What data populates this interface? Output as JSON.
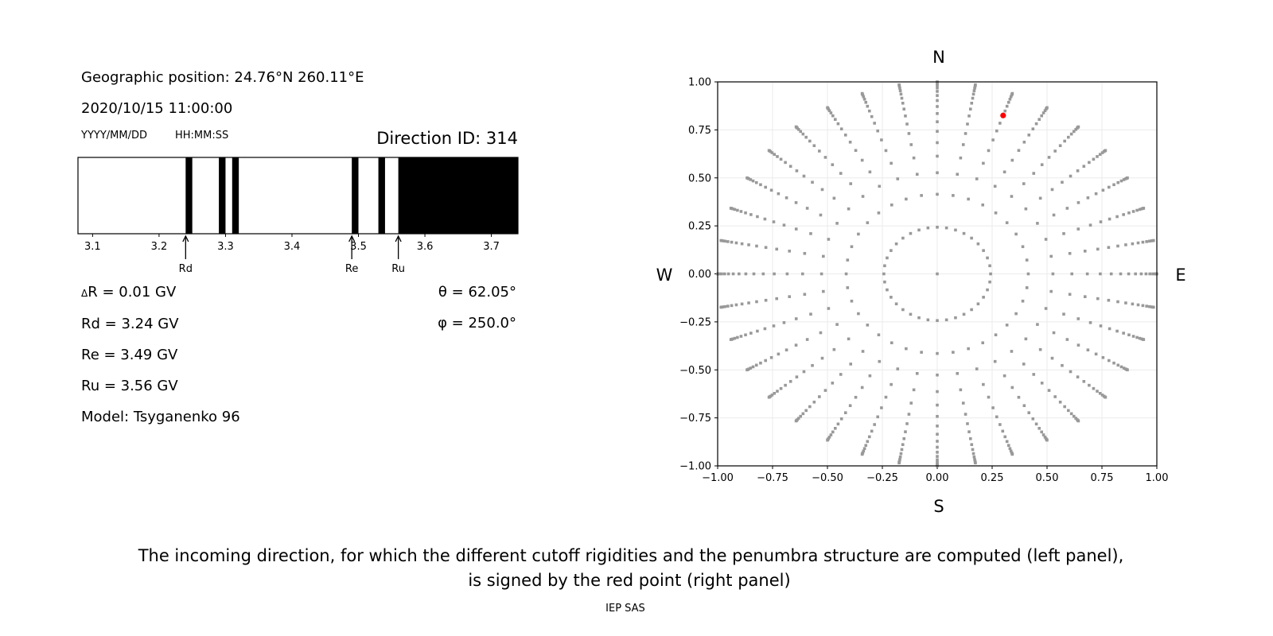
{
  "left_panel": {
    "geo_position": "Geographic position: 24.76°N 260.11°E",
    "datetime": "2020/10/15 11:00:00",
    "date_format": "YYYY/MM/DD",
    "time_format": "HH:MM:SS",
    "direction_id": "Direction ID: 314",
    "delta_r": "R = 0.01 GV",
    "delta_symbol": "Δ",
    "rd": "Rd = 3.24 GV",
    "re": "Re = 3.49 GV",
    "ru": "Ru = 3.56 GV",
    "model": "Model: Tsyganenko 96",
    "theta": "θ = 62.05°",
    "phi": "φ = 250.0°"
  },
  "caption": {
    "line1": "The incoming direction, for which the different cutoff rigidities and the penumbra structure are computed (left panel),",
    "line2": "is signed by the red point (right panel)",
    "credit": "IEP SAS"
  },
  "chart_data": [
    {
      "type": "bar",
      "xlim": [
        3.078,
        3.74
      ],
      "xticks": [
        "3.1",
        "3.2",
        "3.3",
        "3.4",
        "3.5",
        "3.6",
        "3.7"
      ],
      "forbidden_bands": [
        [
          3.24,
          3.25
        ],
        [
          3.29,
          3.3
        ],
        [
          3.31,
          3.32
        ],
        [
          3.49,
          3.5
        ],
        [
          3.53,
          3.54
        ],
        [
          3.56,
          3.74
        ]
      ],
      "band_color": "#000000",
      "markers": [
        {
          "label": "Rd",
          "value": 3.24
        },
        {
          "label": "Re",
          "value": 3.49
        },
        {
          "label": "Ru",
          "value": 3.56
        }
      ]
    },
    {
      "type": "scatter",
      "xlim": [
        -1,
        1
      ],
      "ylim": [
        -1,
        1
      ],
      "xticks": [
        "−1.00",
        "−0.75",
        "−0.50",
        "−0.25",
        "0.00",
        "0.25",
        "0.50",
        "0.75",
        "1.00"
      ],
      "yticks": [
        "−1.00",
        "−0.75",
        "−0.50",
        "−0.25",
        "0.00",
        "0.25",
        "0.50",
        "0.75",
        "1.00"
      ],
      "grid": true,
      "compass": {
        "top": "N",
        "bottom": "S",
        "left": "W",
        "right": "E"
      },
      "grid_azimuth_step_deg": 10,
      "grid_cos_zenith": [
        0.97,
        0.91,
        0.85,
        0.79,
        0.73,
        0.67,
        0.61,
        0.55,
        0.49,
        0.43,
        0.37,
        0.31,
        0.25,
        0.19,
        0.13,
        0.07,
        0.01
      ],
      "center_point": [
        0,
        0
      ],
      "point_color": "#999999",
      "selected_point": {
        "x": 0.3,
        "y": 0.825,
        "color": "#ff0000"
      }
    }
  ]
}
